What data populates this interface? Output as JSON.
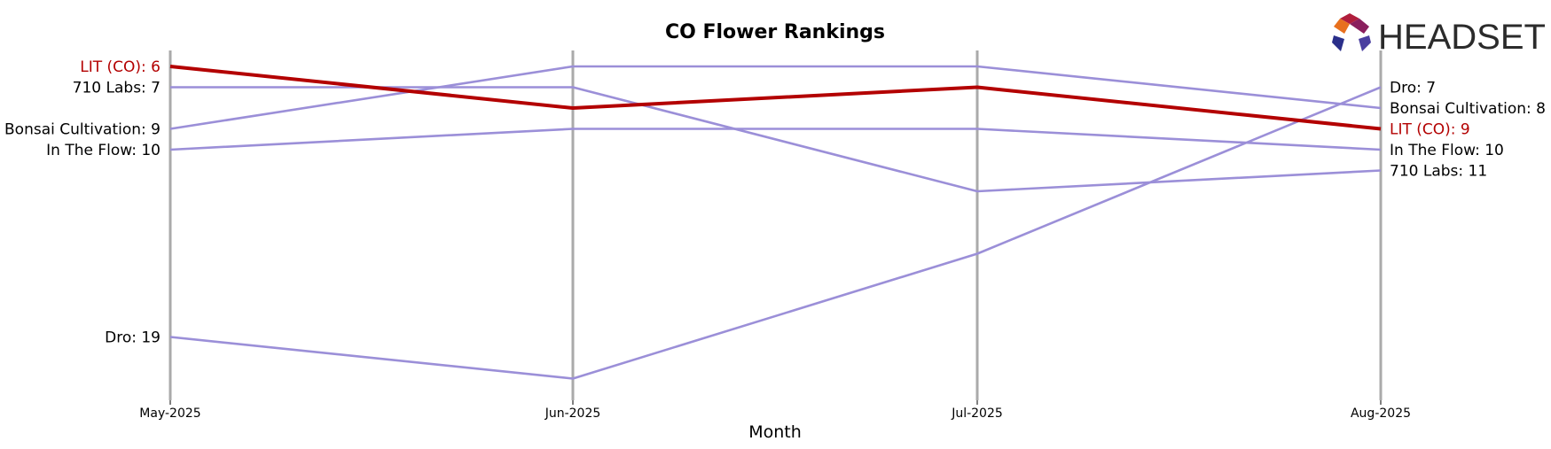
{
  "chart_data": {
    "type": "line",
    "title": "CO Flower Rankings",
    "xlabel": "Month",
    "ylabel": "",
    "x": [
      "May-2025",
      "Jun-2025",
      "Jul-2025",
      "Aug-2025"
    ],
    "y_inverted": true,
    "ylim": [
      5.5,
      20.5
    ],
    "grid": "vertical lines at each month",
    "series": [
      {
        "name": "LIT (CO)",
        "values": [
          6,
          8,
          7,
          9
        ],
        "color": "#b30000",
        "highlight": true
      },
      {
        "name": "710 Labs",
        "values": [
          7,
          7,
          12,
          11
        ],
        "color": "#9b8fd8",
        "highlight": false
      },
      {
        "name": "Bonsai Cultivation",
        "values": [
          9,
          6,
          6,
          8
        ],
        "color": "#9b8fd8",
        "highlight": false
      },
      {
        "name": "In The Flow",
        "values": [
          10,
          9,
          9,
          10
        ],
        "color": "#9b8fd8",
        "highlight": false
      },
      {
        "name": "Dro",
        "values": [
          19,
          21,
          15,
          7
        ],
        "color": "#9b8fd8",
        "highlight": false
      }
    ]
  },
  "logo": {
    "text": "HEADSET"
  },
  "colors": {
    "highlight": "#b30000",
    "others": "#9b8fd8",
    "gridline": "#aaaaaa"
  }
}
